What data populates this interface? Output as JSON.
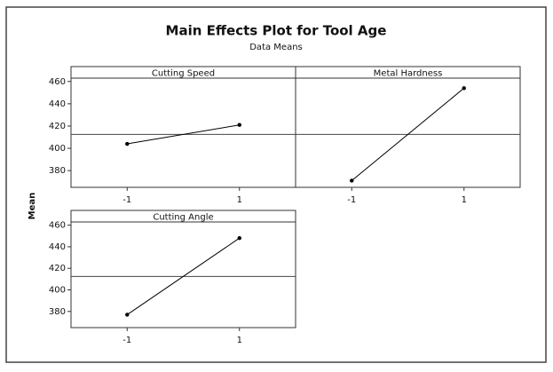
{
  "header": {
    "title": "Main Effects Plot for Tool Age",
    "subtitle": "Data Means",
    "ylabel": "Mean"
  },
  "chart_data": [
    {
      "type": "line",
      "title": "Cutting Speed",
      "x": [
        -1,
        1
      ],
      "values": [
        404,
        421
      ],
      "color": "#000000",
      "xlim": [
        -2,
        2
      ],
      "xticks": [
        -1,
        1
      ],
      "ylim": [
        365,
        463
      ],
      "yticks": [
        380,
        400,
        420,
        440,
        460
      ],
      "hline": 412.5
    },
    {
      "type": "line",
      "title": "Metal Hardness",
      "x": [
        -1,
        1
      ],
      "values": [
        371,
        454
      ],
      "color": "#000000",
      "xlim": [
        -2,
        2
      ],
      "xticks": [
        -1,
        1
      ],
      "ylim": [
        365,
        463
      ],
      "hline": 412.5
    },
    {
      "type": "line",
      "title": "Cutting Angle",
      "x": [
        -1,
        1
      ],
      "values": [
        377,
        448
      ],
      "color": "#000000",
      "xlim": [
        -2,
        2
      ],
      "xticks": [
        -1,
        1
      ],
      "ylim": [
        365,
        463
      ],
      "yticks": [
        380,
        400,
        420,
        440,
        460
      ],
      "hline": 412.5
    }
  ]
}
